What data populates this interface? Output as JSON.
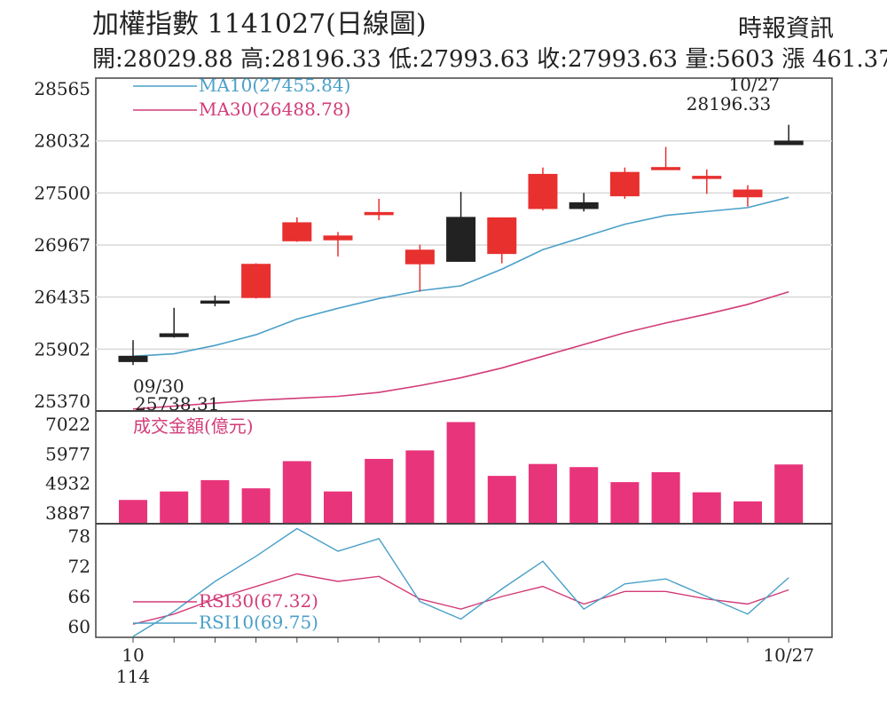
{
  "header": {
    "title": "加權指數 1141027(日線圖)",
    "source": "時報資訊",
    "ohlc_line": "開:28029.88 高:28196.33 低:27993.63 收:27993.63 量:5603 漲 461.37"
  },
  "chart_data": [
    {
      "type": "candlestick",
      "title": "加權指數 1141027(日線圖)",
      "y_ticks": [
        "28565",
        "28032",
        "27500",
        "26967",
        "26435",
        "25902",
        "25370"
      ],
      "ylim": [
        25370,
        28565
      ],
      "grid": true,
      "x_tick_labels": [
        {
          "index": 0,
          "lines": [
            "10",
            "114"
          ]
        },
        {
          "index": 16,
          "lines": [
            "10/27"
          ]
        }
      ],
      "colors": {
        "up": "#e8302f",
        "down": "#222222",
        "ma10": "#4aa0c8",
        "ma30": "#d23c78"
      },
      "candles": [
        {
          "open": 25830,
          "high": 25995,
          "low": 25740,
          "close": 25775
        },
        {
          "open": 26060,
          "high": 26325,
          "low": 26020,
          "close": 26030
        },
        {
          "open": 26395,
          "high": 26450,
          "low": 26340,
          "close": 26395
        },
        {
          "open": 26430,
          "high": 26780,
          "low": 26420,
          "close": 26770
        },
        {
          "open": 27010,
          "high": 27250,
          "low": 27000,
          "close": 27195
        },
        {
          "open": 27020,
          "high": 27100,
          "low": 26850,
          "close": 27060
        },
        {
          "open": 27300,
          "high": 27440,
          "low": 27220,
          "close": 27300
        },
        {
          "open": 26775,
          "high": 26970,
          "low": 26490,
          "close": 26915
        },
        {
          "open": 27250,
          "high": 27510,
          "low": 26795,
          "close": 26800
        },
        {
          "open": 26880,
          "high": 27250,
          "low": 26780,
          "close": 27245
        },
        {
          "open": 27340,
          "high": 27760,
          "low": 27320,
          "close": 27690
        },
        {
          "open": 27400,
          "high": 27500,
          "low": 27310,
          "close": 27340
        },
        {
          "open": 27470,
          "high": 27760,
          "low": 27440,
          "close": 27710
        },
        {
          "open": 27760,
          "high": 27970,
          "low": 27760,
          "close": 27760
        },
        {
          "open": 27650,
          "high": 27740,
          "low": 27490,
          "close": 27670
        },
        {
          "open": 27460,
          "high": 27580,
          "low": 27360,
          "close": 27530
        },
        {
          "open": 28030,
          "high": 28196.33,
          "low": 27993.63,
          "close": 27993.63
        }
      ],
      "series": [
        {
          "name": "MA10(27455.84)",
          "values": [
            25830,
            25855,
            25940,
            26050,
            26210,
            26320,
            26420,
            26500,
            26550,
            26720,
            26920,
            27050,
            27180,
            27270,
            27310,
            27350,
            27455.84
          ]
        },
        {
          "name": "MA30(26488.78)",
          "values": [
            25290,
            25320,
            25350,
            25380,
            25400,
            25420,
            25460,
            25530,
            25610,
            25710,
            25830,
            25950,
            26070,
            26170,
            26260,
            26360,
            26488.78
          ]
        }
      ],
      "annotations": [
        {
          "index": 0,
          "lines": [
            "09/30",
            "25738.31"
          ],
          "position": "below"
        },
        {
          "index": 16,
          "lines": [
            "10/27",
            "28196.33"
          ],
          "position": "above"
        }
      ]
    },
    {
      "type": "bar",
      "title": "成交金額(億元)",
      "y_ticks": [
        "7022",
        "5977",
        "4932",
        "3887"
      ],
      "ylim": [
        3887,
        7022
      ],
      "color": "#e8347a",
      "values": [
        4350,
        4650,
        5050,
        4760,
        5720,
        4650,
        5800,
        6100,
        7100,
        5200,
        5620,
        5510,
        4980,
        5330,
        4620,
        4300,
        5603
      ]
    },
    {
      "type": "line",
      "y_ticks": [
        "78",
        "72",
        "66",
        "60"
      ],
      "ylim": [
        58,
        80
      ],
      "series": [
        {
          "name": "RSI30(67.32)",
          "color": "#d23c78",
          "values": [
            60.5,
            62.5,
            65.5,
            68.0,
            70.5,
            69.0,
            70.0,
            65.5,
            63.5,
            66.0,
            68.0,
            64.5,
            67.0,
            67.0,
            65.5,
            64.5,
            67.32
          ]
        },
        {
          "name": "RSI10(69.75)",
          "color": "#4aa0c8",
          "values": [
            57.5,
            63.0,
            69.0,
            74.0,
            79.5,
            75.0,
            77.5,
            65.0,
            61.5,
            67.5,
            73.0,
            63.5,
            68.5,
            69.5,
            66.0,
            62.5,
            69.75
          ]
        }
      ]
    }
  ]
}
